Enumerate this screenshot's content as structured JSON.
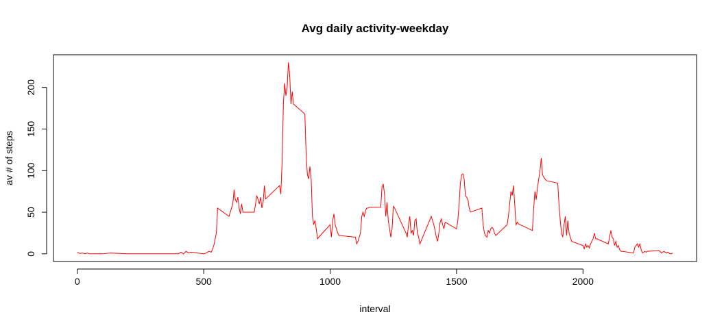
{
  "chart_data": {
    "type": "line",
    "title": "Avg daily activity-weekday",
    "xlabel": "interval",
    "ylabel": "av # of steps",
    "x": [
      0,
      5,
      10,
      20,
      30,
      40,
      50,
      100,
      130,
      200,
      300,
      400,
      410,
      420,
      430,
      440,
      450,
      500,
      510,
      520,
      530,
      540,
      550,
      555,
      600,
      610,
      615,
      620,
      625,
      630,
      635,
      640,
      645,
      650,
      655,
      700,
      705,
      710,
      715,
      720,
      725,
      730,
      735,
      740,
      745,
      800,
      805,
      810,
      815,
      820,
      825,
      830,
      835,
      840,
      845,
      850,
      855,
      900,
      905,
      910,
      915,
      920,
      925,
      930,
      935,
      940,
      945,
      950,
      955,
      1000,
      1005,
      1010,
      1015,
      1020,
      1025,
      1030,
      1035,
      1040,
      1100,
      1105,
      1110,
      1115,
      1120,
      1125,
      1130,
      1135,
      1140,
      1145,
      1150,
      1155,
      1200,
      1205,
      1210,
      1215,
      1220,
      1225,
      1230,
      1235,
      1240,
      1245,
      1250,
      1255,
      1300,
      1305,
      1310,
      1315,
      1320,
      1325,
      1330,
      1335,
      1340,
      1345,
      1350,
      1355,
      1400,
      1405,
      1410,
      1415,
      1420,
      1425,
      1430,
      1435,
      1440,
      1445,
      1450,
      1455,
      1500,
      1505,
      1510,
      1515,
      1520,
      1525,
      1530,
      1535,
      1540,
      1545,
      1550,
      1555,
      1600,
      1605,
      1610,
      1615,
      1620,
      1625,
      1630,
      1635,
      1640,
      1645,
      1650,
      1655,
      1700,
      1705,
      1710,
      1715,
      1720,
      1725,
      1730,
      1735,
      1740,
      1745,
      1800,
      1805,
      1810,
      1815,
      1820,
      1825,
      1830,
      1835,
      1840,
      1845,
      1850,
      1855,
      1900,
      1905,
      1910,
      1915,
      1920,
      1925,
      1930,
      1935,
      1940,
      1945,
      1950,
      1955,
      2000,
      2005,
      2010,
      2015,
      2020,
      2025,
      2030,
      2035,
      2040,
      2045,
      2050,
      2055,
      2100,
      2105,
      2110,
      2115,
      2120,
      2125,
      2130,
      2135,
      2140,
      2145,
      2150,
      2155,
      2200,
      2205,
      2210,
      2215,
      2220,
      2225,
      2230,
      2235,
      2240,
      2245,
      2250,
      2255,
      2300,
      2305,
      2310,
      2315,
      2320,
      2325,
      2330,
      2335,
      2340,
      2345,
      2350,
      2355
    ],
    "series": [
      {
        "color": "#ff0000",
        "values": [
          2,
          1,
          0.5,
          1,
          0,
          1,
          0,
          0,
          1,
          0,
          0,
          0,
          2,
          0,
          3,
          1,
          2,
          0,
          1,
          3,
          2,
          10,
          25,
          55,
          45,
          55,
          60,
          77,
          65,
          62,
          68,
          55,
          48,
          60,
          50,
          50,
          60,
          70,
          65,
          60,
          68,
          55,
          62,
          82,
          66,
          82,
          72,
          110,
          180,
          205,
          190,
          200,
          230,
          215,
          180,
          195,
          180,
          168,
          120,
          95,
          90,
          105,
          90,
          45,
          35,
          40,
          30,
          18,
          20,
          35,
          20,
          40,
          48,
          35,
          30,
          25,
          22,
          22,
          20,
          12,
          15,
          20,
          25,
          45,
          50,
          45,
          52,
          55,
          55,
          56,
          56,
          80,
          84,
          72,
          45,
          62,
          40,
          30,
          20,
          30,
          57,
          55,
          25,
          20,
          35,
          45,
          25,
          28,
          22,
          40,
          42,
          25,
          20,
          12,
          45,
          40,
          35,
          28,
          20,
          15,
          25,
          38,
          42,
          35,
          30,
          38,
          30,
          40,
          60,
          85,
          95,
          96,
          90,
          70,
          68,
          65,
          55,
          50,
          55,
          35,
          25,
          22,
          20,
          28,
          25,
          30,
          32,
          30,
          25,
          22,
          35,
          45,
          60,
          75,
          70,
          82,
          60,
          35,
          38,
          36,
          28,
          55,
          75,
          65,
          80,
          90,
          100,
          115,
          95,
          92,
          90,
          88,
          85,
          60,
          40,
          25,
          20,
          35,
          45,
          22,
          40,
          25,
          20,
          15,
          10,
          6,
          12,
          8,
          10,
          7,
          12,
          15,
          18,
          25,
          18,
          18,
          12,
          20,
          28,
          20,
          18,
          10,
          15,
          8,
          10,
          5,
          3,
          3,
          1,
          8,
          10,
          12,
          8,
          12,
          5,
          1,
          2,
          3,
          2,
          3,
          4,
          3,
          1,
          2,
          3,
          2,
          1,
          2,
          1,
          0,
          0,
          1
        ]
      }
    ],
    "xlim": [
      -94.2,
      2449.2
    ],
    "ylim": [
      -9.2,
      239.2
    ],
    "xticks": [
      0,
      500,
      1000,
      1500,
      2000
    ],
    "yticks": [
      0,
      50,
      100,
      150,
      200
    ]
  }
}
